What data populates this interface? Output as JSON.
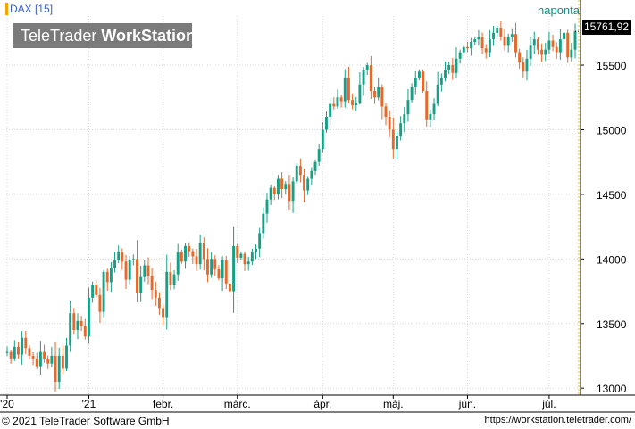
{
  "header": {
    "symbol": "DAX [15]",
    "interval": "naponta",
    "logo_regular": "TeleTrader ",
    "logo_bold": "WorkStation",
    "last_price": "15761,92"
  },
  "footer": {
    "copyright": "© 2021  TeleTrader Software GmbH",
    "url": "https://workstation.teletrader.com/"
  },
  "colors": {
    "up": "#16a085",
    "down": "#e8682a",
    "grid": "#d8d8d8",
    "axis": "#000000"
  },
  "chart_data": {
    "type": "candlestick",
    "ylim": [
      12960,
      15880
    ],
    "y_ticks": [
      {
        "value": 13000,
        "label": "13000"
      },
      {
        "value": 13500,
        "label": "13500"
      },
      {
        "value": 14000,
        "label": "14000"
      },
      {
        "value": 14500,
        "label": "14500"
      },
      {
        "value": 15000,
        "label": "15000"
      },
      {
        "value": 15500,
        "label": "15500"
      }
    ],
    "x_ticks": [
      {
        "index": 0,
        "label": "'20"
      },
      {
        "index": 22,
        "label": "'21"
      },
      {
        "index": 42,
        "label": "febr."
      },
      {
        "index": 62,
        "label": "márc."
      },
      {
        "index": 85,
        "label": "ápr."
      },
      {
        "index": 104,
        "label": "máj."
      },
      {
        "index": 124,
        "label": "jún."
      },
      {
        "index": 146,
        "label": "júl."
      }
    ],
    "start_price": 13280,
    "closes": [
      13280,
      13230,
      13320,
      13260,
      13390,
      13310,
      13250,
      13230,
      13170,
      13280,
      13230,
      13190,
      13250,
      13050,
      13250,
      13150,
      13330,
      13580,
      13450,
      13520,
      13480,
      13400,
      13700,
      13800,
      13720,
      13590,
      13900,
      13820,
      13930,
      13990,
      14050,
      13980,
      13840,
      13990,
      14000,
      13740,
      13860,
      13950,
      13870,
      13760,
      13700,
      13620,
      13550,
      13900,
      13800,
      13880,
      14050,
      13980,
      14100,
      14060,
      14020,
      13960,
      14120,
      14000,
      13880,
      14000,
      13920,
      13850,
      13990,
      13810,
      13750,
      14100,
      14010,
      14040,
      13960,
      13980,
      14050,
      14080,
      14200,
      14350,
      14460,
      14550,
      14500,
      14620,
      14540,
      14580,
      14450,
      14600,
      14720,
      14650,
      14530,
      14620,
      14680,
      14750,
      14850,
      15000,
      15100,
      15200,
      15180,
      15250,
      15220,
      15400,
      15230,
      15190,
      15210,
      15350,
      15460,
      15500,
      15300,
      15250,
      15330,
      15180,
      15100,
      15000,
      14850,
      14950,
      15050,
      15120,
      15230,
      15330,
      15400,
      15450,
      15300,
      15080,
      15120,
      15200,
      15350,
      15400,
      15460,
      15500,
      15440,
      15550,
      15600,
      15640,
      15630,
      15680,
      15700,
      15720,
      15630,
      15600,
      15700,
      15750,
      15790,
      15720,
      15650,
      15720,
      15740,
      15600,
      15520,
      15450,
      15550,
      15650,
      15700,
      15620,
      15580,
      15620,
      15690,
      15640,
      15600,
      15700,
      15750,
      15560,
      15620,
      15761.92
    ]
  }
}
